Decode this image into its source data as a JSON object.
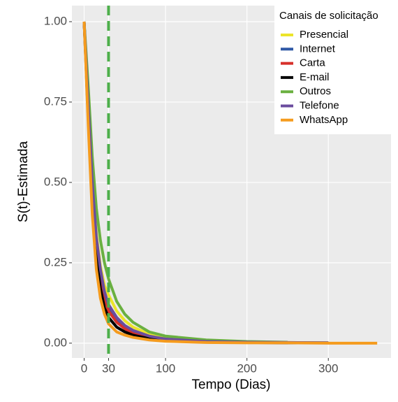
{
  "chart_data": {
    "type": "line",
    "xlabel": "Tempo (Dias)",
    "ylabel": "S(t)-Estimada",
    "legend_title": "Canais de solicitação",
    "legend_position": "top-right",
    "x": [
      0,
      5,
      10,
      15,
      20,
      25,
      30,
      40,
      50,
      60,
      80,
      100,
      150,
      200,
      250,
      300,
      360
    ],
    "series": [
      {
        "name": "Presencial",
        "color": "#ECE42A",
        "values": [
          1,
          0.75,
          0.5,
          0.34,
          0.24,
          0.18,
          0.15,
          0.1,
          0.07,
          0.05,
          0.028,
          0.017,
          0.007,
          0.004,
          0.002,
          0.001,
          null
        ]
      },
      {
        "name": "Internet",
        "color": "#2F58A6",
        "values": [
          1,
          0.74,
          0.48,
          0.32,
          0.22,
          0.15,
          0.11,
          0.07,
          0.05,
          0.035,
          0.02,
          0.012,
          0.005,
          0.003,
          0.001,
          null,
          null
        ]
      },
      {
        "name": "Carta",
        "color": "#D7302A",
        "values": [
          1,
          0.73,
          0.47,
          0.31,
          0.21,
          0.14,
          0.1,
          0.065,
          0.045,
          0.03,
          0.017,
          0.01,
          0.004,
          0.002,
          0.001,
          null,
          null
        ]
      },
      {
        "name": "E-mail",
        "color": "#000000",
        "values": [
          1,
          0.7,
          0.44,
          0.27,
          0.17,
          0.11,
          0.08,
          0.05,
          0.035,
          0.025,
          0.014,
          0.008,
          0.003,
          0.002,
          0.001,
          0.001,
          null
        ]
      },
      {
        "name": "Outros",
        "color": "#6AB040",
        "values": [
          1,
          0.8,
          0.58,
          0.42,
          0.32,
          0.25,
          0.2,
          0.13,
          0.09,
          0.065,
          0.035,
          0.022,
          0.01,
          0.005,
          0.003,
          null,
          null
        ]
      },
      {
        "name": "Telefone",
        "color": "#6B4C9E",
        "values": [
          1,
          0.74,
          0.5,
          0.33,
          0.23,
          0.16,
          0.12,
          0.08,
          0.055,
          0.04,
          0.022,
          0.013,
          0.005,
          0.003,
          0.002,
          0.001,
          null
        ]
      },
      {
        "name": "WhatsApp",
        "color": "#F59B1E",
        "values": [
          1,
          0.68,
          0.4,
          0.23,
          0.14,
          0.09,
          0.06,
          0.035,
          0.025,
          0.018,
          0.01,
          0.006,
          0.002,
          0.001,
          0.001,
          0,
          0
        ]
      }
    ],
    "vline": {
      "x": 30,
      "color": "#4DAF4A"
    },
    "xlim": [
      -15,
      377
    ],
    "ylim": [
      -0.046,
      1.05
    ],
    "xticks": [
      0,
      30,
      100,
      200,
      300
    ],
    "yticks": [
      {
        "value": 0,
        "label": "0.00"
      },
      {
        "value": 0.25,
        "label": "0.25"
      },
      {
        "value": 0.5,
        "label": "0.50"
      },
      {
        "value": 0.75,
        "label": "0.75"
      },
      {
        "value": 1,
        "label": "1.00"
      }
    ],
    "grid": true
  }
}
